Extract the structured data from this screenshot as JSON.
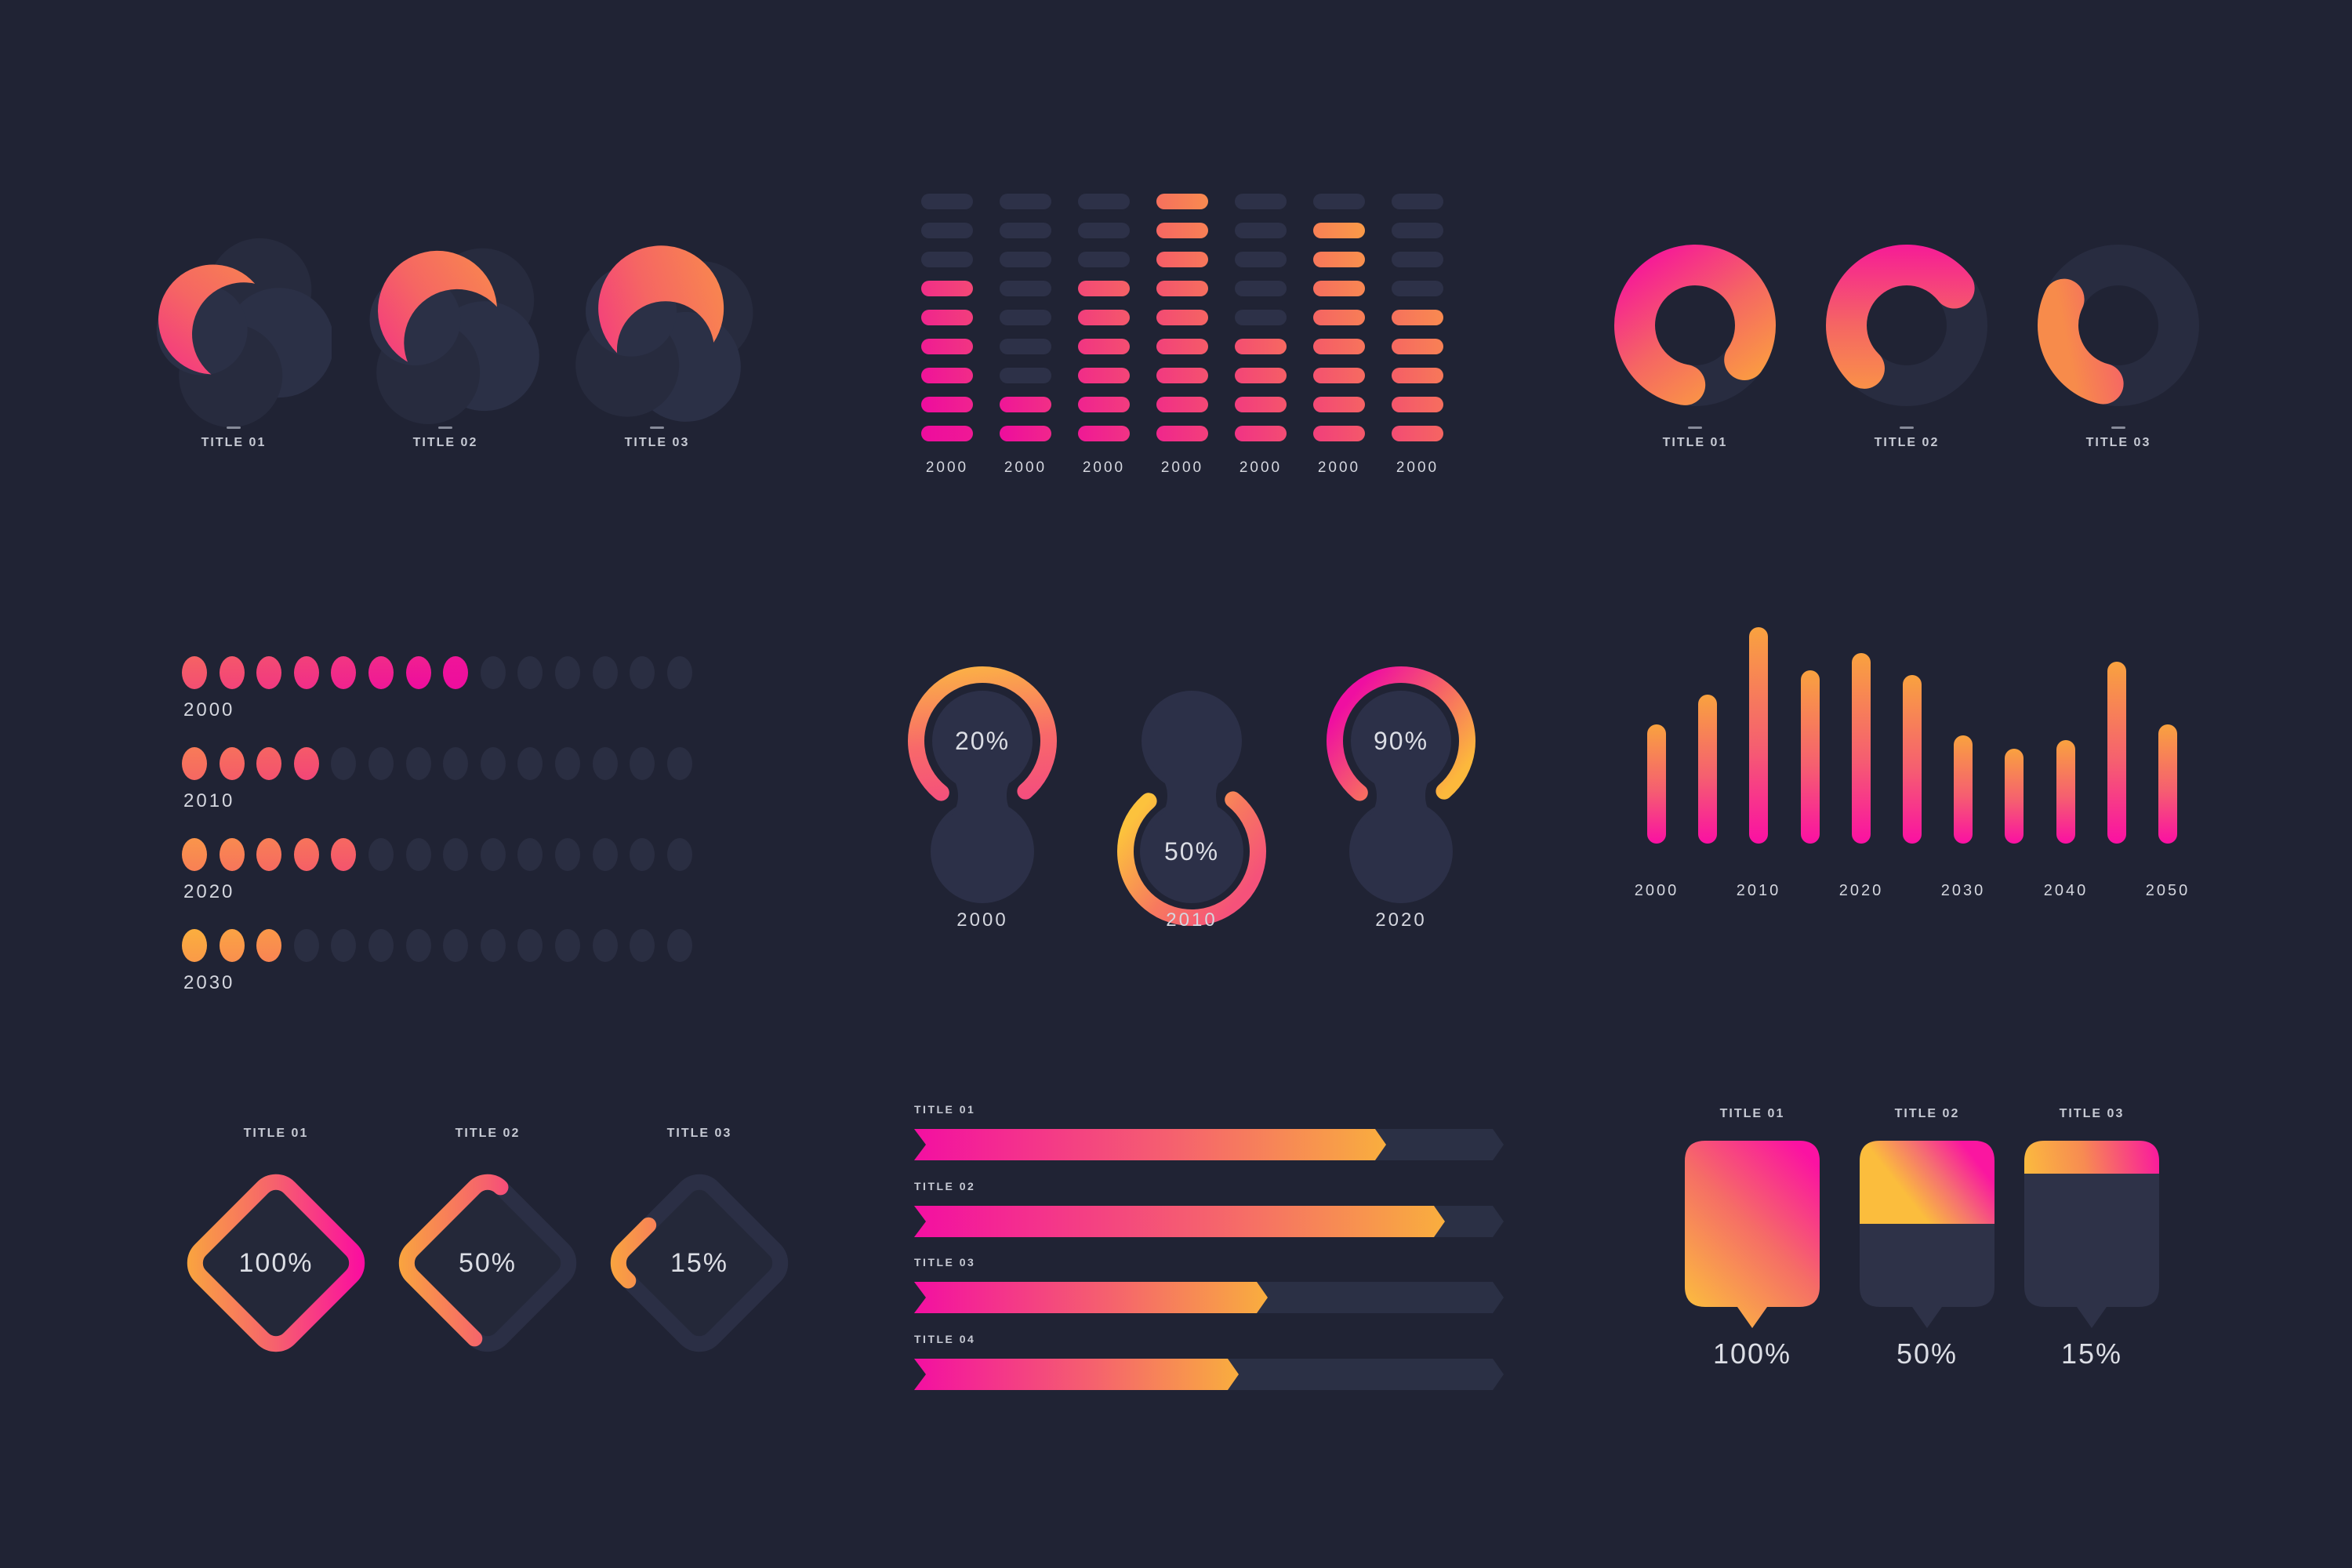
{
  "colors": {
    "background": "#202334",
    "shape_dark_a": "#272b3e",
    "shape_dark_b": "#2b3046",
    "equalizer_off": "#2d3148",
    "dot_off": "#2a2e42",
    "track": "#2b3045",
    "bubble_off": "#2e3248",
    "diamond_off": "#2b2f45",
    "diamond_fill": "#242839",
    "peanut": "#2c3048",
    "ring_off": "#282c40",
    "text_title": "#c7cad4",
    "text_number": "#d5d7df",
    "ramp": [
      "#fcb53b",
      "#f56065",
      "#ee0c9e"
    ],
    "bar_gradient": [
      "#f9a23f",
      "#f55f70",
      "#fa10a3"
    ],
    "hbar_gradient": [
      "#f30fa2",
      "#f5616e",
      "#f9ae3e"
    ],
    "icon_gradient": [
      "#f30d9d",
      "#f56663",
      "#fba03f"
    ]
  },
  "chart_data": [
    {
      "id": "swirl-icons-left",
      "type": "pictogram",
      "labels": [
        "TITLE 01",
        "TITLE 02",
        "TITLE 03"
      ],
      "arc_fraction": [
        0.45,
        0.62,
        0.8
      ]
    },
    {
      "id": "equalizer",
      "type": "bar",
      "categories": [
        "2000",
        "2000",
        "2000",
        "2000",
        "2000",
        "2000",
        "2000"
      ],
      "values": [
        6,
        2,
        6,
        9,
        4,
        8,
        5
      ],
      "ymax": 9,
      "note": "segments lit per column, out of 9 rows"
    },
    {
      "id": "swirl-rings-right",
      "type": "pictogram",
      "labels": [
        "TITLE 01",
        "TITLE 02",
        "TITLE 03"
      ],
      "arc_fraction": [
        0.82,
        0.52,
        0.28
      ]
    },
    {
      "id": "dot-matrix",
      "type": "dot-matrix",
      "categories": [
        "2000",
        "2010",
        "2020",
        "2030"
      ],
      "values": [
        8,
        4,
        5,
        3
      ],
      "total_per_row": 14
    },
    {
      "id": "gauges",
      "type": "gauge",
      "categories": [
        "2000",
        "2010",
        "2020"
      ],
      "values": [
        20,
        50,
        90
      ],
      "value_labels": [
        "20%",
        "50%",
        "90%"
      ],
      "ring_position": [
        "top",
        "bottom",
        "top"
      ]
    },
    {
      "id": "rounded-bars",
      "type": "bar",
      "values_relative": [
        55,
        69,
        100,
        80,
        88,
        78,
        50,
        44,
        48,
        84,
        55
      ],
      "tick_count": 11,
      "tick_labels": [
        "2000",
        "2010",
        "2020",
        "2030",
        "2040",
        "2050"
      ],
      "labeled_tick_indexes": [
        0,
        2,
        4,
        6,
        8,
        10
      ]
    },
    {
      "id": "diamonds",
      "type": "gauge",
      "categories": [
        "TITLE 01",
        "TITLE 02",
        "TITLE 03"
      ],
      "values": [
        100,
        50,
        15
      ],
      "value_labels": [
        "100%",
        "50%",
        "15%"
      ]
    },
    {
      "id": "progress-bars",
      "type": "bar",
      "orientation": "horizontal",
      "categories": [
        "TITLE 01",
        "TITLE 02",
        "TITLE 03",
        "TITLE 04"
      ],
      "values": [
        80,
        90,
        60,
        55
      ]
    },
    {
      "id": "bubbles",
      "type": "gauge",
      "categories": [
        "TITLE 01",
        "TITLE 02",
        "TITLE 03"
      ],
      "values": [
        100,
        50,
        15
      ],
      "value_labels": [
        "100%",
        "50%",
        "15%"
      ]
    }
  ]
}
